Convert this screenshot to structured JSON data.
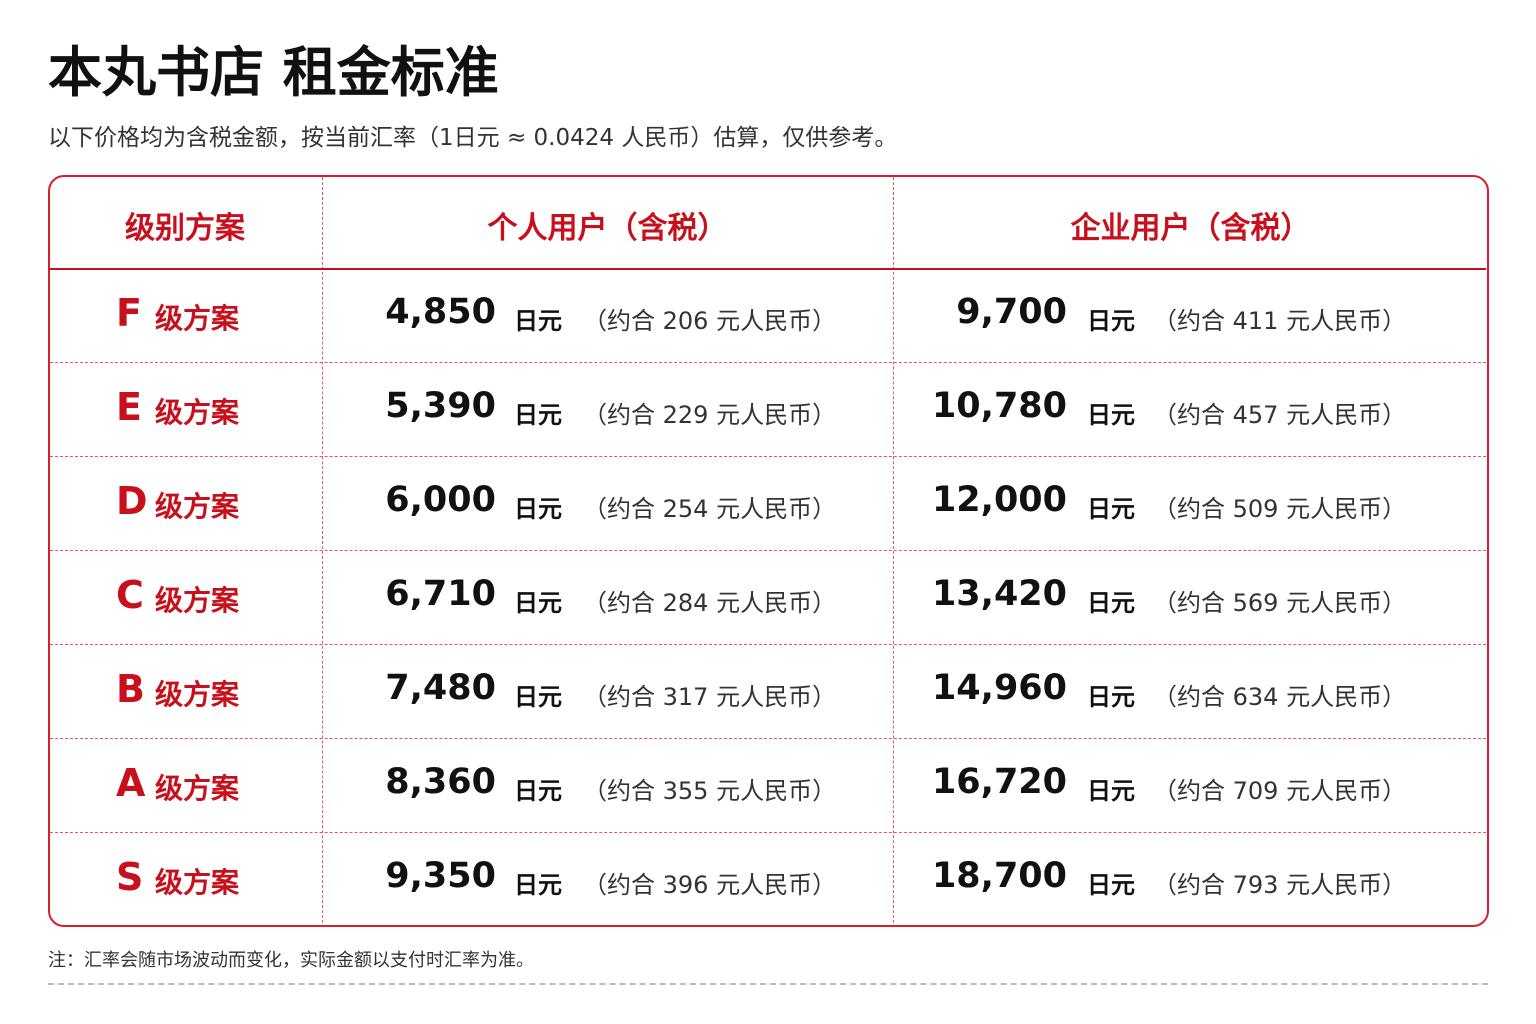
{
  "header": {
    "title": "本丸书店 租金标准",
    "subtitle": "以下价格均为含税金额，按当前汇率（1日元 ≈ 0.0424 人民币）估算，仅供参考。"
  },
  "table": {
    "columns": [
      "级别方案",
      "个人用户（含税）",
      "企业用户（含税）"
    ],
    "rows": [
      {
        "level": "F",
        "plan": "级方案",
        "personal": {
          "amount": "4,850",
          "unit": "日元",
          "cny": "（约合 206 元人民币）"
        },
        "business": {
          "amount": "9,700",
          "unit": "日元",
          "cny": "（约合 411 元人民币）"
        }
      },
      {
        "level": "E",
        "plan": "级方案",
        "personal": {
          "amount": "5,390",
          "unit": "日元",
          "cny": "（约合 229 元人民币）"
        },
        "business": {
          "amount": "10,780",
          "unit": "日元",
          "cny": "（约合 457 元人民币）"
        }
      },
      {
        "level": "D",
        "plan": "级方案",
        "personal": {
          "amount": "6,000",
          "unit": "日元",
          "cny": "（约合 254 元人民币）"
        },
        "business": {
          "amount": "12,000",
          "unit": "日元",
          "cny": "（约合 509 元人民币）"
        }
      },
      {
        "level": "C",
        "plan": "级方案",
        "personal": {
          "amount": "6,710",
          "unit": "日元",
          "cny": "（约合 284 元人民币）"
        },
        "business": {
          "amount": "13,420",
          "unit": "日元",
          "cny": "（约合 569 元人民币）"
        }
      },
      {
        "level": "B",
        "plan": "级方案",
        "personal": {
          "amount": "7,480",
          "unit": "日元",
          "cny": "（约合 317 元人民币）"
        },
        "business": {
          "amount": "14,960",
          "unit": "日元",
          "cny": "（约合 634 元人民币）"
        }
      },
      {
        "level": "A",
        "plan": "级方案",
        "personal": {
          "amount": "8,360",
          "unit": "日元",
          "cny": "（约合 355 元人民币）"
        },
        "business": {
          "amount": "16,720",
          "unit": "日元",
          "cny": "（约合 709 元人民币）"
        }
      },
      {
        "level": "S",
        "plan": "级方案",
        "personal": {
          "amount": "9,350",
          "unit": "日元",
          "cny": "（约合 396 元人民币）"
        },
        "business": {
          "amount": "18,700",
          "unit": "日元",
          "cny": "（约合 793 元人民币）"
        }
      }
    ]
  },
  "footer": {
    "note": "注：汇率会随市场波动而变化，实际金额以支付时汇率为准。"
  }
}
